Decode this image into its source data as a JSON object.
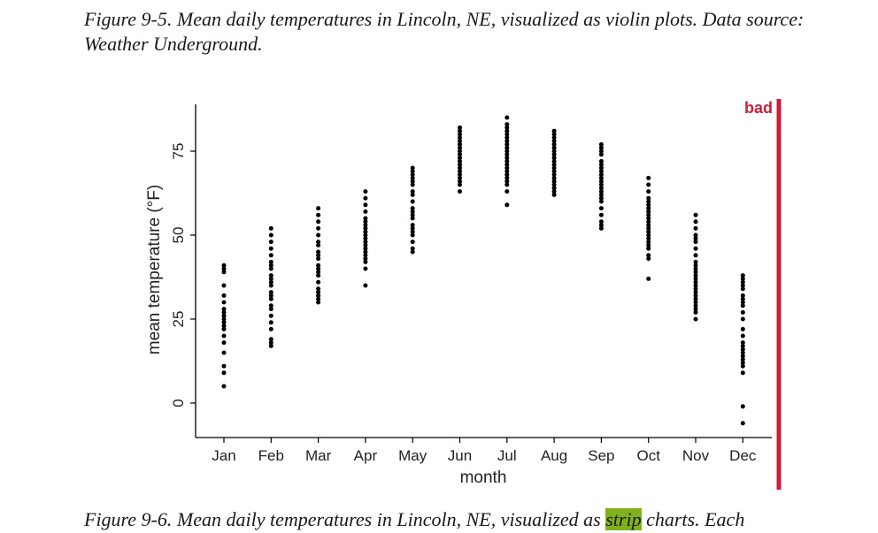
{
  "caption_top": "Figure 9-5. Mean daily temperatures in Lincoln, NE, visualized as violin plots. Data source: Weather Underground.",
  "caption_bottom": {
    "before": "Figure 9-6. Mean daily temperatures in Lincoln, NE, visualized as ",
    "highlight": "strip",
    "after": " charts. Each"
  },
  "bad_label": "bad",
  "colors": {
    "bad": "#c8203c",
    "points": "#000000",
    "axis": "#000000",
    "highlight": "#7fb21a"
  },
  "chart_data": {
    "type": "scatter",
    "subtype": "strip",
    "xlabel": "month",
    "ylabel": "mean temperature (°F)",
    "ylim": [
      -10,
      90
    ],
    "yticks": [
      0,
      25,
      50,
      75
    ],
    "categories": [
      "Jan",
      "Feb",
      "Mar",
      "Apr",
      "May",
      "Jun",
      "Jul",
      "Aug",
      "Sep",
      "Oct",
      "Nov",
      "Dec"
    ],
    "values": [
      [
        5,
        9,
        11,
        15,
        18,
        20,
        22,
        23,
        24,
        25,
        26,
        27,
        28,
        30,
        32,
        35,
        39,
        40,
        41
      ],
      [
        17,
        18,
        19,
        22,
        24,
        26,
        28,
        29,
        31,
        32,
        33,
        35,
        36,
        37,
        38,
        40,
        41,
        42,
        44,
        46,
        48,
        50,
        52
      ],
      [
        30,
        31,
        32,
        33,
        34,
        36,
        38,
        39,
        40,
        41,
        43,
        44,
        45,
        47,
        48,
        50,
        52,
        54,
        56,
        58
      ],
      [
        35,
        40,
        42,
        43,
        44,
        45,
        46,
        47,
        48,
        49,
        50,
        51,
        52,
        53,
        54,
        55,
        57,
        59,
        61,
        63
      ],
      [
        45,
        46,
        48,
        50,
        51,
        52,
        53,
        55,
        56,
        57,
        58,
        60,
        62,
        63,
        65,
        66,
        67,
        68,
        69,
        70
      ],
      [
        63,
        65,
        66,
        67,
        68,
        69,
        70,
        71,
        72,
        73,
        74,
        75,
        76,
        77,
        78,
        79,
        80,
        81,
        82
      ],
      [
        59,
        63,
        65,
        66,
        67,
        68,
        69,
        70,
        71,
        72,
        73,
        74,
        75,
        76,
        77,
        78,
        79,
        80,
        81,
        82,
        83,
        85
      ],
      [
        62,
        63,
        64,
        65,
        66,
        67,
        68,
        69,
        70,
        71,
        72,
        73,
        74,
        75,
        76,
        77,
        78,
        79,
        80,
        81
      ],
      [
        52,
        53,
        54,
        56,
        58,
        60,
        61,
        62,
        63,
        64,
        65,
        66,
        67,
        68,
        69,
        70,
        71,
        72,
        74,
        75,
        76,
        77
      ],
      [
        37,
        43,
        44,
        46,
        47,
        48,
        49,
        50,
        51,
        52,
        53,
        54,
        55,
        56,
        57,
        58,
        59,
        60,
        61,
        63,
        65,
        67
      ],
      [
        25,
        27,
        28,
        29,
        30,
        31,
        32,
        33,
        34,
        35,
        36,
        37,
        38,
        39,
        40,
        41,
        42,
        44,
        46,
        48,
        49,
        50,
        52,
        54,
        56
      ],
      [
        -6,
        -1,
        9,
        11,
        12,
        13,
        14,
        15,
        16,
        17,
        18,
        20,
        22,
        25,
        27,
        29,
        30,
        31,
        32,
        34,
        35,
        36,
        37,
        38
      ]
    ]
  }
}
